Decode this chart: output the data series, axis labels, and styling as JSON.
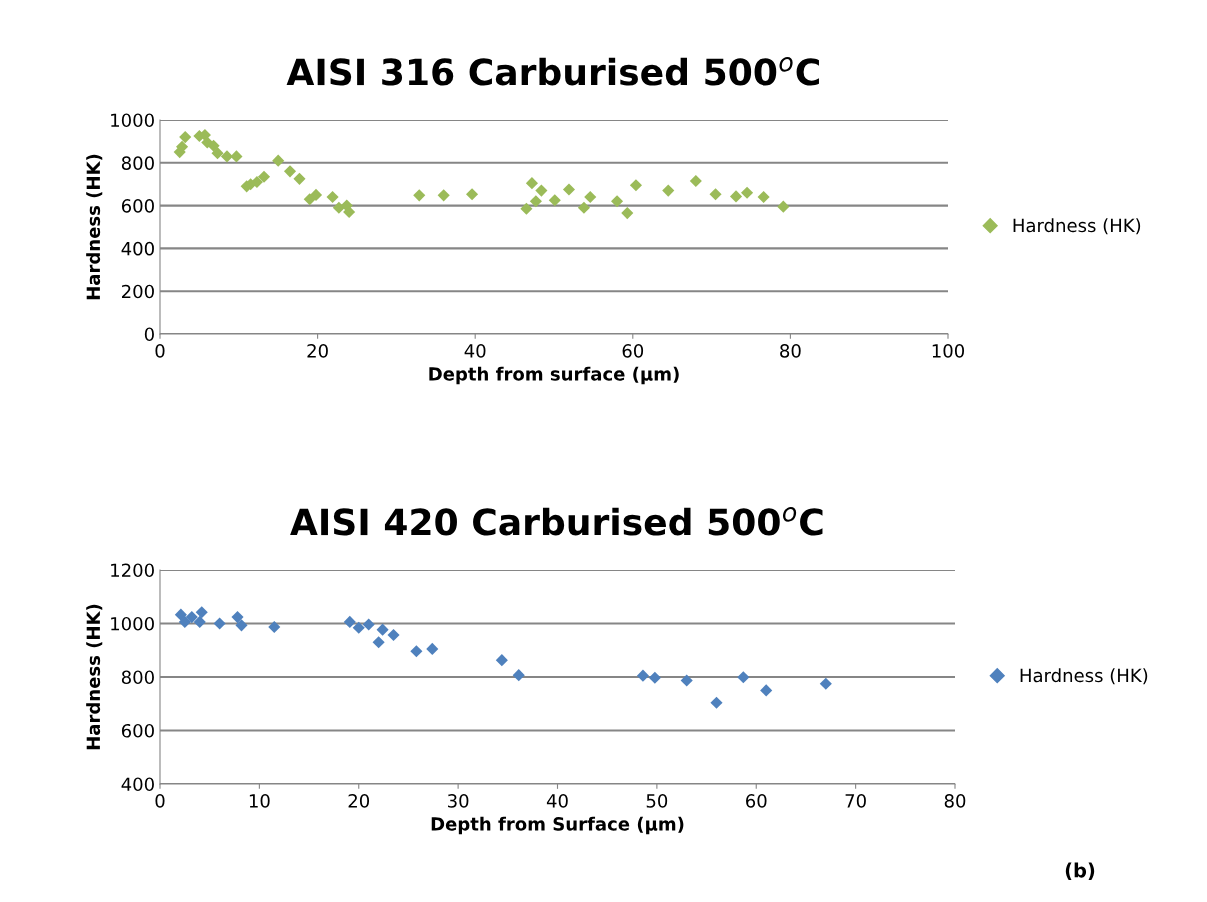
{
  "chart_data": [
    {
      "type": "scatter",
      "title": "AISI 316 Carburised 500$^{o}$C",
      "xlabel": "Depth from surface (µm)",
      "ylabel": "Hardness (HK)",
      "xlim": [
        0,
        100
      ],
      "xticks": [
        0,
        20,
        40,
        60,
        80,
        100
      ],
      "ylim": [
        0,
        1000
      ],
      "yticks": [
        0,
        200,
        400,
        600,
        800,
        1000
      ],
      "grid": "y",
      "legend": "right",
      "marker": "diamond",
      "series": [
        {
          "name": "Hardness (HK)",
          "color": "#9bbb59",
          "x": [
            2.5,
            2.8,
            3.2,
            5,
            5.7,
            6,
            6.8,
            7,
            7.3,
            8.2,
            8.5,
            9.7,
            11,
            11.5,
            12.3,
            13.2,
            15,
            16.5,
            17.7,
            19,
            19.8,
            21.9,
            22.7,
            23.7,
            24,
            32.9,
            36,
            39.6,
            46.5,
            47.2,
            47.7,
            48.4,
            50.1,
            51.9,
            53.8,
            54.6,
            58,
            59.3,
            60.4,
            64.5,
            68,
            70.5,
            73.1,
            74.5,
            76.6,
            79.1
          ],
          "values": [
            850,
            875,
            920,
            925,
            930,
            895,
            880,
            null,
            845,
            null,
            830,
            830,
            690,
            700,
            710,
            735,
            810,
            760,
            725,
            630,
            650,
            640,
            590,
            600,
            570,
            648,
            648,
            653,
            585,
            705,
            620,
            670,
            625,
            675,
            590,
            640,
            620,
            565,
            695,
            670,
            715,
            653,
            643,
            660,
            640,
            595
          ]
        }
      ]
    },
    {
      "type": "scatter",
      "title": "AISI 420 Carburised 500$^{o}$C",
      "xlabel": "Depth from Surface (µm)",
      "ylabel": "Hardness (HK)",
      "xlim": [
        0,
        80
      ],
      "xticks": [
        0,
        10,
        20,
        30,
        40,
        50,
        60,
        70,
        80
      ],
      "ylim": [
        400,
        1200
      ],
      "yticks": [
        400,
        600,
        800,
        1000,
        1200
      ],
      "grid": "y",
      "legend": "right",
      "marker": "diamond",
      "annotations": [
        "(b)"
      ],
      "series": [
        {
          "name": "Hardness (HK)",
          "color": "#4f81bd",
          "x": [
            2.1,
            2.5,
            3.2,
            4.0,
            4.2,
            6.0,
            7.8,
            8.2,
            11.5,
            19.1,
            20.0,
            21.0,
            22.4,
            22.0,
            23.5,
            25.8,
            27.4,
            34.4,
            36.1,
            48.6,
            49.8,
            53.0,
            56.0,
            58.7,
            61.0,
            67.0
          ],
          "values": [
            1033,
            1006,
            1024,
            1006,
            1042,
            1000,
            1024,
            993,
            987,
            1006,
            984,
            996,
            977,
            930,
            957,
            896,
            905,
            863,
            807,
            805,
            797,
            787,
            704,
            799,
            750,
            775
          ]
        }
      ]
    }
  ]
}
